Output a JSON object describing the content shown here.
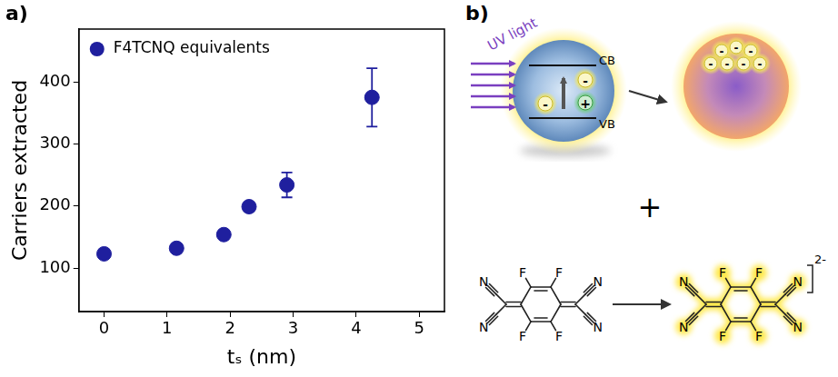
{
  "panel_labels": [
    "a)",
    "b)"
  ],
  "chart_data": {
    "type": "scatter",
    "xlabel": "tₛ (nm)",
    "ylabel": "Carriers extracted",
    "x": [
      0,
      1.15,
      1.9,
      2.3,
      2.9,
      4.25
    ],
    "series": [
      {
        "name": "F4TCNQ equivalents",
        "color": "#1f1f9e",
        "marker": "circle",
        "values": [
          123,
          132,
          154,
          199,
          234,
          375
        ],
        "errors": [
          7,
          4,
          4,
          5,
          20,
          47
        ]
      }
    ],
    "xlim": [
      -0.4,
      5.4
    ],
    "xticks": [
      0,
      1,
      2,
      3,
      4,
      5
    ],
    "ylim": [
      30,
      485
    ],
    "yticks": [
      100,
      200,
      300,
      400
    ],
    "grid": false,
    "legend": "upper left"
  },
  "diagram": {
    "excitation": "UV light",
    "bands": {
      "conduction": "CB",
      "valence": "VB"
    },
    "electron": "-",
    "hole": "+",
    "combine": "+",
    "atoms": {
      "nitrogen": "N",
      "fluorine": "F"
    },
    "charge": "2-"
  }
}
